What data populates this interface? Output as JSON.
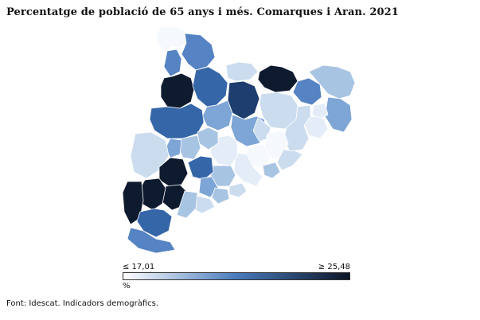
{
  "title": "Percentatge de població de 65 anys i més. Comarques i Aran. 2021",
  "map": {
    "colors": {
      "c1": "#f5f8fd",
      "c2": "#e3ecf7",
      "c3": "#cbdcee",
      "c4": "#a8c4e3",
      "c5": "#7da5d5",
      "c6": "#5583c3",
      "c7": "#3566a8",
      "c8": "#1e3e6f",
      "c9": "#0e1a2e",
      "border": "#ffffff",
      "outline": "#9aa8bb"
    }
  },
  "legend": {
    "min_label": "≤ 17,01",
    "max_label": "≥ 25,48",
    "unit": "%",
    "gradient_start": "#ffffff",
    "gradient_mid": "#4a7bbd",
    "gradient_end": "#0b1526"
  },
  "source": "Font: Idescat. Indicadors demogràfics."
}
